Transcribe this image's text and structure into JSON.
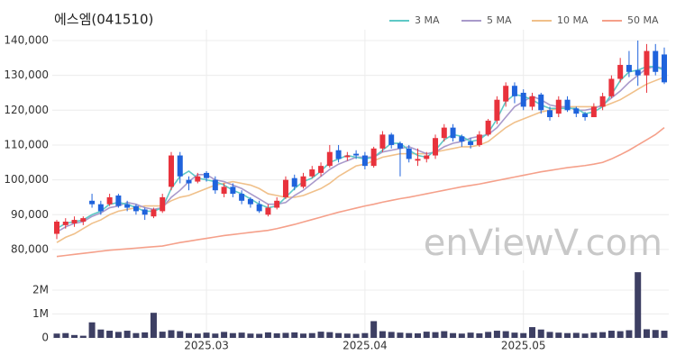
{
  "chart_data": {
    "type": "candlestick",
    "title": "에스엠(041510)",
    "watermark": "enViewV.com",
    "up_color": "#e8323c",
    "down_color": "#1f63dc",
    "grid": true,
    "categories": [
      null,
      null,
      null,
      null,
      null,
      null,
      null,
      null,
      null,
      null,
      null,
      null,
      null,
      null,
      null,
      null,
      null,
      "2025.03",
      null,
      null,
      null,
      null,
      null,
      null,
      null,
      null,
      null,
      null,
      null,
      null,
      null,
      null,
      null,
      null,
      null,
      "2025.04",
      null,
      null,
      null,
      null,
      null,
      null,
      null,
      null,
      null,
      null,
      null,
      null,
      null,
      null,
      null,
      null,
      null,
      "2025.05",
      null,
      null,
      null,
      null,
      null,
      null,
      null,
      null,
      null,
      null,
      null,
      null,
      null,
      null,
      null,
      null
    ],
    "open": [
      84500,
      87000,
      87500,
      88000,
      94000,
      93000,
      93000,
      95500,
      93000,
      92500,
      91500,
      89500,
      91000,
      98000,
      107000,
      100000,
      99500,
      102000,
      100000,
      96000,
      98000,
      96000,
      94500,
      93000,
      90000,
      92000,
      95000,
      100500,
      98000,
      101000,
      102000,
      104000,
      108500,
      106500,
      107500,
      107000,
      104000,
      109000,
      113000,
      110500,
      109000,
      105500,
      106000,
      107000,
      112000,
      115000,
      112500,
      111000,
      110000,
      113000,
      117000,
      122500,
      127000,
      125000,
      121000,
      124500,
      120000,
      119000,
      123000,
      120500,
      119000,
      118000,
      121000,
      124000,
      129000,
      133000,
      131500,
      130000,
      137000,
      136000
    ],
    "high": [
      88500,
      89000,
      89500,
      89500,
      96000,
      94000,
      96000,
      96000,
      94000,
      93000,
      92000,
      92000,
      96000,
      108000,
      108000,
      101000,
      102000,
      102500,
      101000,
      99000,
      99000,
      97000,
      95000,
      94000,
      93000,
      95000,
      101000,
      101500,
      102000,
      104000,
      105000,
      110000,
      110000,
      108000,
      108500,
      108000,
      109500,
      114000,
      113500,
      111000,
      110000,
      109000,
      108000,
      113000,
      116000,
      116000,
      113000,
      112000,
      114000,
      117500,
      124000,
      128000,
      128000,
      126000,
      125000,
      125000,
      121000,
      124000,
      124000,
      121000,
      119500,
      122000,
      125000,
      130000,
      135000,
      137000,
      140000,
      139000,
      139000,
      138000
    ],
    "low": [
      83000,
      86000,
      86500,
      87000,
      92000,
      90000,
      92500,
      92000,
      91000,
      90000,
      88500,
      89000,
      90500,
      97000,
      99000,
      97000,
      99000,
      99500,
      96000,
      95000,
      95000,
      93000,
      92000,
      90500,
      89500,
      91500,
      94500,
      97000,
      97500,
      100500,
      101000,
      103500,
      105000,
      105500,
      106000,
      103000,
      103500,
      108000,
      109000,
      101000,
      105000,
      104000,
      105000,
      106000,
      111000,
      111000,
      109500,
      109000,
      109500,
      112500,
      116000,
      121000,
      122000,
      120000,
      120000,
      119000,
      117000,
      118000,
      119500,
      118000,
      117000,
      118000,
      120000,
      123500,
      128000,
      129500,
      127000,
      125000,
      130000,
      127500
    ],
    "close": [
      88000,
      88000,
      88500,
      89000,
      93000,
      91000,
      95000,
      92500,
      92000,
      91000,
      90000,
      91500,
      95000,
      107000,
      101000,
      99000,
      101000,
      100500,
      97000,
      98000,
      96000,
      94000,
      93000,
      91000,
      92000,
      94000,
      100000,
      98000,
      101000,
      103000,
      104000,
      108000,
      106000,
      107000,
      107000,
      104000,
      109000,
      113000,
      110000,
      109000,
      106000,
      106000,
      107000,
      112000,
      115000,
      112000,
      111000,
      110000,
      113000,
      117000,
      123000,
      127000,
      124000,
      121000,
      124000,
      120000,
      118000,
      123000,
      120000,
      119000,
      118000,
      121000,
      124000,
      129000,
      133000,
      131000,
      130000,
      137000,
      131000,
      128000
    ],
    "ylim": [
      76100,
      143100
    ],
    "yticks": [
      {
        "value": 80000,
        "label": "80,000"
      },
      {
        "value": 90000,
        "label": "90,000"
      },
      {
        "value": 100000,
        "label": "100,000"
      },
      {
        "value": 110000,
        "label": "110,000"
      },
      {
        "value": 120000,
        "label": "120,000"
      },
      {
        "value": 130000,
        "label": "130,000"
      },
      {
        "value": 140000,
        "label": "140,000"
      }
    ],
    "series": [
      {
        "name": "3 MA",
        "color": "#5fc9c6",
        "values": [
          86000,
          87500,
          88000,
          88500,
          90000,
          91000,
          93000,
          93500,
          93000,
          92000,
          91000,
          91000,
          92000,
          97500,
          101000,
          102500,
          100500,
          100000,
          99500,
          98500,
          97000,
          96000,
          94500,
          93000,
          92000,
          92500,
          95000,
          97500,
          99500,
          100500,
          102500,
          105000,
          106000,
          107000,
          106500,
          106000,
          106500,
          108500,
          110500,
          110500,
          108500,
          107000,
          106500,
          108500,
          111500,
          113000,
          112500,
          111000,
          111500,
          113500,
          117500,
          122500,
          124500,
          124000,
          123000,
          121500,
          120500,
          120500,
          120500,
          120500,
          119000,
          119500,
          121000,
          124500,
          128500,
          131000,
          131500,
          132500,
          132500,
          131500
        ]
      },
      {
        "name": "5 MA",
        "color": "#a99acb",
        "values": [
          85000,
          86500,
          87500,
          88000,
          89500,
          90500,
          92000,
          92500,
          93500,
          93000,
          92000,
          91500,
          92000,
          95000,
          97000,
          99500,
          101500,
          101500,
          100000,
          99500,
          98500,
          97500,
          96000,
          94500,
          93000,
          93000,
          93500,
          95500,
          97000,
          99000,
          101000,
          103000,
          104500,
          105500,
          106500,
          106500,
          106500,
          108000,
          108500,
          109000,
          109500,
          108500,
          107500,
          108000,
          109500,
          110500,
          111000,
          112000,
          112500,
          113000,
          115000,
          118000,
          121000,
          122500,
          124000,
          123000,
          121500,
          121000,
          121000,
          120000,
          120000,
          120500,
          121500,
          123500,
          125500,
          128000,
          130000,
          132000,
          132500,
          132000
        ]
      },
      {
        "name": "10 MA",
        "color": "#f0c08a",
        "values": [
          82000,
          83500,
          84500,
          86000,
          87500,
          88500,
          90000,
          91000,
          91500,
          92000,
          92500,
          92500,
          92500,
          94000,
          95000,
          95500,
          96500,
          97500,
          98500,
          99000,
          99500,
          99000,
          98500,
          97500,
          96000,
          95500,
          95000,
          95000,
          95500,
          96500,
          97500,
          99000,
          101000,
          102500,
          104000,
          104500,
          105500,
          106500,
          107000,
          107500,
          107500,
          107500,
          107500,
          108000,
          108500,
          109000,
          109500,
          109500,
          110000,
          111000,
          113000,
          115000,
          116500,
          117500,
          118500,
          119500,
          120000,
          120500,
          121000,
          121000,
          121000,
          121000,
          121000,
          122000,
          123000,
          124500,
          126000,
          127500,
          128500,
          129500
        ]
      },
      {
        "name": "50 MA",
        "color": "#f5a08a",
        "values": [
          78000,
          78300,
          78600,
          78900,
          79200,
          79500,
          79800,
          80000,
          80200,
          80400,
          80600,
          80800,
          81000,
          81500,
          82000,
          82400,
          82800,
          83200,
          83600,
          84000,
          84300,
          84600,
          84900,
          85200,
          85500,
          86000,
          86600,
          87200,
          87900,
          88600,
          89300,
          90000,
          90700,
          91300,
          91900,
          92500,
          93000,
          93600,
          94100,
          94600,
          95000,
          95500,
          96000,
          96500,
          97000,
          97500,
          98000,
          98400,
          98800,
          99300,
          99800,
          100300,
          100800,
          101300,
          101800,
          102300,
          102700,
          103100,
          103500,
          103800,
          104100,
          104500,
          105000,
          106000,
          107200,
          108500,
          110000,
          111500,
          113000,
          115000
        ]
      }
    ],
    "volume": {
      "color": "#3d3f63",
      "ylim": [
        0,
        2830000
      ],
      "yticks": [
        0,
        {
          "value": 1000000,
          "label": "1M"
        },
        {
          "value": 2000000,
          "label": "2M"
        }
      ],
      "values": [
        180000,
        200000,
        120000,
        90000,
        650000,
        350000,
        300000,
        250000,
        300000,
        200000,
        230000,
        1050000,
        260000,
        320000,
        280000,
        200000,
        180000,
        220000,
        180000,
        250000,
        200000,
        220000,
        180000,
        170000,
        230000,
        190000,
        210000,
        230000,
        180000,
        200000,
        260000,
        240000,
        200000,
        180000,
        170000,
        200000,
        700000,
        280000,
        250000,
        220000,
        200000,
        190000,
        260000,
        240000,
        280000,
        200000,
        180000,
        220000,
        190000,
        250000,
        300000,
        280000,
        220000,
        200000,
        450000,
        350000,
        250000,
        220000,
        200000,
        210000,
        180000,
        220000,
        240000,
        300000,
        280000,
        320000,
        2750000,
        360000,
        330000,
        300000
      ]
    }
  }
}
